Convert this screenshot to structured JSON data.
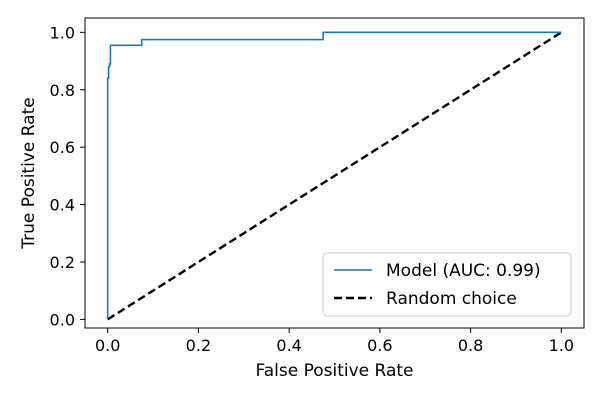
{
  "chart_data": {
    "type": "line",
    "xlabel": "False Positive Rate",
    "ylabel": "True Positive Rate",
    "xlim": [
      -0.05,
      1.05
    ],
    "ylim": [
      -0.03,
      1.05
    ],
    "x_ticks": [
      0.0,
      0.2,
      0.4,
      0.6,
      0.8,
      1.0
    ],
    "x_tick_labels": [
      "0.0",
      "0.2",
      "0.4",
      "0.6",
      "0.8",
      "1.0"
    ],
    "y_ticks": [
      0.0,
      0.2,
      0.4,
      0.6,
      0.8,
      1.0
    ],
    "y_tick_labels": [
      "0.0",
      "0.2",
      "0.4",
      "0.6",
      "0.8",
      "1.0"
    ],
    "grid": false,
    "legend_position": "lower-right",
    "series": [
      {
        "name": "Model (AUC: 0.99)",
        "color": "#1f77b4",
        "style": "solid",
        "x": [
          0.0,
          0.0,
          0.002,
          0.002,
          0.004,
          0.004,
          0.006,
          0.006,
          0.075,
          0.075,
          0.475,
          0.475,
          1.0
        ],
        "y": [
          0.0,
          0.84,
          0.84,
          0.88,
          0.88,
          0.89,
          0.89,
          0.955,
          0.955,
          0.975,
          0.975,
          1.0,
          1.0
        ]
      },
      {
        "name": "Random choice",
        "color": "#000000",
        "style": "dashed",
        "x": [
          0.0,
          1.0
        ],
        "y": [
          0.0,
          1.0
        ]
      }
    ]
  }
}
